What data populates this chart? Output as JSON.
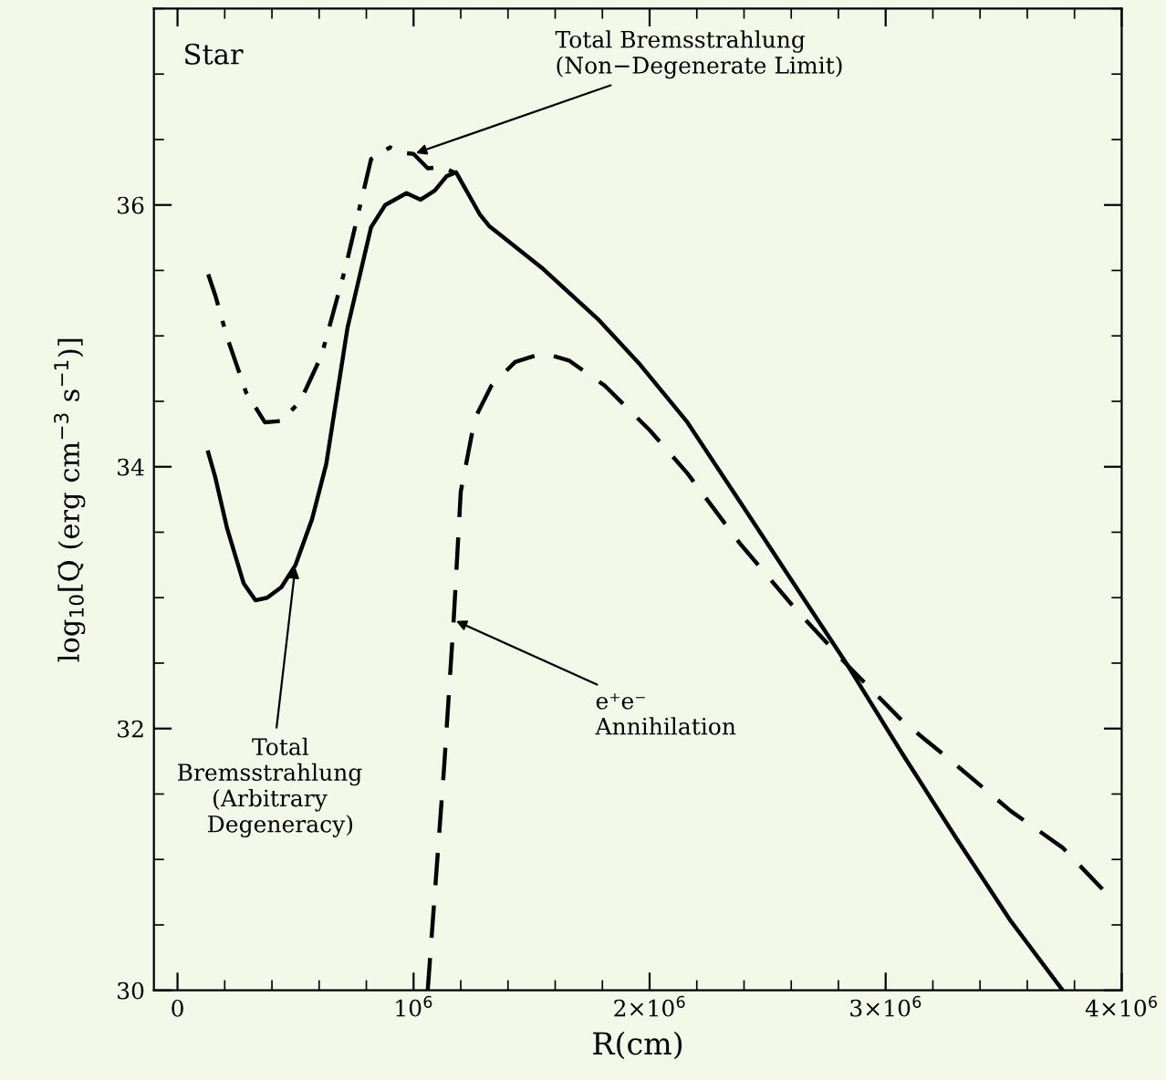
{
  "chart_data": {
    "type": "line",
    "xlabel": "R(cm)",
    "ylabel": "log$_{10}$[Q̇ (erg cm$^{−3}$ s$^{−1}$)]",
    "xlim": [
      -100000,
      4000000
    ],
    "ylim": [
      30,
      37.5
    ],
    "xticks": [
      {
        "value": 0,
        "label": "0"
      },
      {
        "value": 1000000,
        "label": "10$^{6}$"
      },
      {
        "value": 2000000,
        "label": "2×10$^{6}$"
      },
      {
        "value": 3000000,
        "label": "3×10$^{6}$"
      },
      {
        "value": 4000000,
        "label": "4×10$^{6}$"
      }
    ],
    "yticks": [
      30,
      32,
      34,
      36
    ],
    "grid": false,
    "legend": false,
    "series": [
      {
        "color": "#000000",
        "line_style": "solid",
        "x": [
          130000,
          160000,
          210000,
          280000,
          330000,
          380000,
          440000,
          500000,
          570000,
          630000,
          720000,
          820000,
          880000,
          970000,
          1030000,
          1090000,
          1140000,
          1180000,
          1280000,
          1320000,
          1550000,
          1780000,
          1960000,
          2160000,
          2380000,
          2610000,
          2840000,
          3070000,
          3300000,
          3530000,
          3750000
        ],
        "values": [
          34.11,
          33.92,
          33.53,
          33.11,
          32.98,
          33.0,
          33.08,
          33.25,
          33.6,
          34.02,
          35.06,
          35.83,
          36.0,
          36.09,
          36.04,
          36.11,
          36.22,
          36.25,
          35.93,
          35.84,
          35.51,
          35.13,
          34.78,
          34.34,
          33.74,
          33.11,
          32.48,
          31.81,
          31.16,
          30.53,
          30.0
        ]
      },
      {
        "color": "#000000",
        "line_style": "dashdot",
        "x": [
          130000,
          160000,
          210000,
          290000,
          370000,
          440000,
          520000,
          610000,
          710000,
          820000,
          900000,
          950000,
          1000000,
          1060000,
          1120000,
          1170000
        ],
        "values": [
          35.47,
          35.31,
          34.99,
          34.57,
          34.34,
          34.35,
          34.5,
          34.85,
          35.51,
          36.35,
          36.44,
          36.4,
          36.39,
          36.28,
          36.29,
          36.25
        ]
      },
      {
        "color": "#000000",
        "line_style": "dashed",
        "x": [
          1060000,
          1090000,
          1130000,
          1170000,
          1200000,
          1260000,
          1330000,
          1430000,
          1550000,
          1660000,
          1810000,
          2000000,
          2160000,
          2380000,
          2610000,
          2840000,
          3070000,
          3300000,
          3530000,
          3750000,
          3920000
        ],
        "values": [
          30.0,
          30.74,
          31.72,
          32.83,
          33.81,
          34.37,
          34.62,
          34.8,
          34.87,
          34.81,
          34.62,
          34.28,
          33.95,
          33.42,
          32.93,
          32.48,
          32.06,
          31.72,
          31.37,
          31.09,
          30.77
        ]
      }
    ],
    "annotations": [
      "Star",
      {
        "text": "Total Bremsstrahlung\n(Non−Degenerate Limit)",
        "x": 1000000,
        "y": 36.39
      },
      {
        "text": "e⁺e⁻\nAnnihilation",
        "x": 1170000,
        "y": 32.83
      },
      {
        "text": "   Total\nBremsstrahlung\n(Arbitrary\n   Degeneracy)",
        "x": 500000,
        "y": 33.25
      }
    ]
  }
}
